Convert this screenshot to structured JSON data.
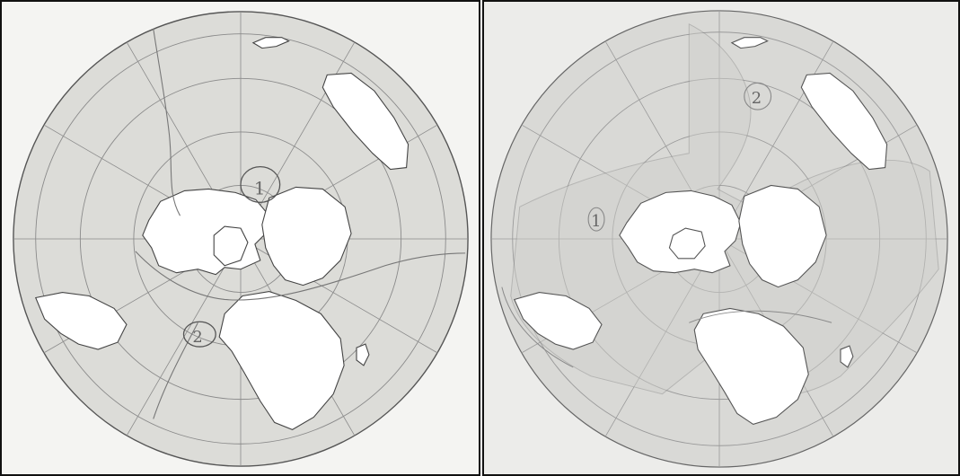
{
  "maps": [
    {
      "id": "left",
      "zone_labels": [
        "1",
        "2"
      ],
      "colors": {
        "paper": "#f4f4f2",
        "disc": "#dcdcd8",
        "land": "#ffffff",
        "line": "#555555",
        "grid": "#8a8a8a",
        "zone_line": "#777777"
      }
    },
    {
      "id": "right",
      "zone_labels": [
        "1",
        "2"
      ],
      "colors": {
        "paper": "#ececea",
        "disc": "#d9d9d6",
        "land": "#ffffff",
        "line": "#666666",
        "grid": "#9a9a9a",
        "zone_line": "#8a8a8a"
      }
    }
  ]
}
